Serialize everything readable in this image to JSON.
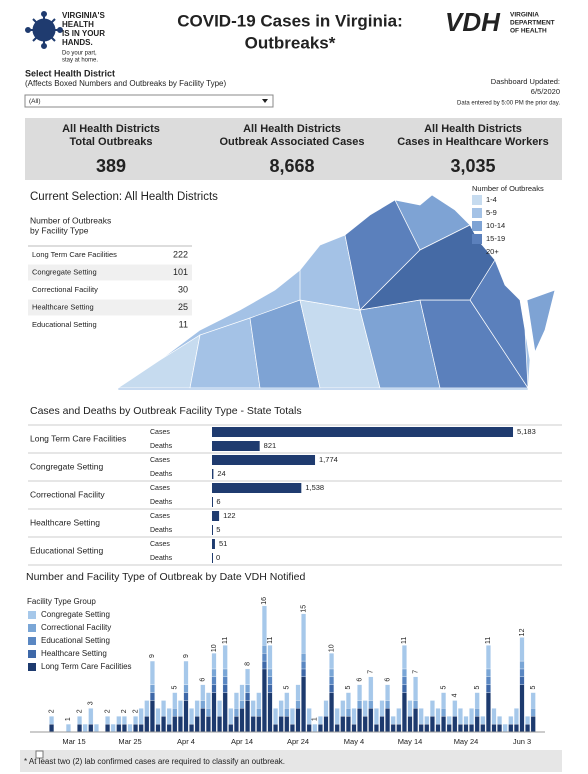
{
  "header": {
    "logo_lines": [
      "VIRGINIA'S",
      "HEALTH",
      "IS IN YOUR",
      "HANDS."
    ],
    "logo_tagline": [
      "Do your part,",
      "stay at home."
    ],
    "title": [
      "COVID-19 Cases in Virginia:",
      "Outbreaks*"
    ],
    "vdh_mark": "VDH",
    "vdh_name": [
      "VIRGINIA",
      "DEPARTMENT",
      "OF HEALTH"
    ]
  },
  "filter": {
    "label": "Select Health District",
    "note": "(Affects Boxed Numbers and Outbreaks by Facility Type)",
    "value": "(All)"
  },
  "updated": {
    "label": "Dashboard Updated:",
    "date": "6/5/2020",
    "note": "Data entered by 5:00 PM the prior day."
  },
  "kpis": [
    {
      "label": [
        "All Health Districts",
        "Total Outbreaks"
      ],
      "value": "389"
    },
    {
      "label": [
        "All Health Districts",
        "Outbreak Associated Cases"
      ],
      "value": "8,668"
    },
    {
      "label": [
        "All Health Districts",
        "Cases in Healthcare Workers"
      ],
      "value": "3,035"
    }
  ],
  "selection": "Current Selection: All Health Districts",
  "facility_table": {
    "title": [
      "Number of Outbreaks",
      "by Facility Type"
    ],
    "rows": [
      [
        "Long Term Care Facilities",
        "222"
      ],
      [
        "Congregate Setting",
        "101"
      ],
      [
        "Correctional Facility",
        "30"
      ],
      [
        "Healthcare Setting",
        "25"
      ],
      [
        "Educational Setting",
        "11"
      ]
    ]
  },
  "map": {
    "legend_title": "Number of Outbreaks",
    "bins": [
      {
        "label": "1-4",
        "color": "#c6dbef"
      },
      {
        "label": "5-9",
        "color": "#a4c2e6"
      },
      {
        "label": "10-14",
        "color": "#7ea3d4"
      },
      {
        "label": "15-19",
        "color": "#5b80bc"
      },
      {
        "label": "20+",
        "color": "#456aa5"
      }
    ]
  },
  "chart_data": [
    {
      "type": "hbar",
      "title": "Cases and Deaths by Outbreak Facility Type - State Totals",
      "categories": [
        "Long Term Care Facilities",
        "Congregate Setting",
        "Correctional Facility",
        "Healthcare Setting",
        "Educational Setting"
      ],
      "series": [
        {
          "name": "Cases",
          "color": "#1f3b6f",
          "values": [
            5183,
            1774,
            1538,
            122,
            51
          ],
          "value_labels": [
            "5,183",
            "1,774",
            "1,538",
            "122",
            "51"
          ]
        },
        {
          "name": "Deaths",
          "color": "#1f3b6f",
          "values": [
            821,
            24,
            6,
            5,
            0
          ],
          "value_labels": [
            "821",
            "24",
            "6",
            "5",
            "0"
          ]
        }
      ],
      "xlim": [
        0,
        5200
      ]
    },
    {
      "type": "stacked-bar",
      "title": "Number and Facility Type of Outbreak by Date VDH Notified",
      "legend_title": "Facility Type Group",
      "categories": [
        null,
        null,
        null,
        null,
        null,
        null,
        null,
        "Mar 15",
        null,
        null,
        null,
        null,
        null,
        null,
        null,
        null,
        null,
        "Mar 25",
        null,
        null,
        null,
        null,
        null,
        null,
        null,
        null,
        null,
        "Apr 4",
        null,
        null,
        null,
        null,
        null,
        null,
        null,
        null,
        null,
        "Apr 14",
        null,
        null,
        null,
        null,
        null,
        null,
        null,
        null,
        null,
        "Apr 24",
        null,
        null,
        null,
        null,
        null,
        null,
        null,
        null,
        null,
        "May 4",
        null,
        null,
        null,
        null,
        null,
        null,
        null,
        null,
        null,
        "May 14",
        null,
        null,
        null,
        null,
        null,
        null,
        null,
        null,
        null,
        "May 24",
        null,
        null,
        null,
        null,
        null,
        null,
        null,
        null,
        null,
        "Jun 3",
        null,
        null
      ],
      "series": [
        {
          "name": "Congregate Setting",
          "color": "#a6c8ea",
          "values": [
            0,
            0,
            0,
            1,
            0,
            0,
            1,
            0,
            1,
            1,
            2,
            1,
            0,
            1,
            1,
            1,
            1,
            1,
            1,
            2,
            2,
            3,
            2,
            2,
            2,
            2,
            2,
            3,
            2,
            2,
            2,
            2,
            2,
            2,
            3,
            2,
            2,
            2,
            2,
            2,
            2,
            5,
            3,
            2,
            2,
            2,
            2,
            2,
            5,
            2,
            1,
            1,
            2,
            2,
            2,
            2,
            2,
            2,
            2,
            2,
            3,
            2,
            2,
            2,
            1,
            2,
            3,
            2,
            3,
            2,
            1,
            2,
            2,
            2,
            1,
            2,
            2,
            1,
            2,
            2,
            1,
            3,
            2,
            1,
            1,
            1,
            2,
            3,
            1,
            2
          ]
        },
        {
          "name": "Correctional Facility",
          "color": "#7aa6d6",
          "values": [
            0,
            0,
            0,
            0,
            0,
            0,
            0,
            0,
            0,
            0,
            0,
            0,
            0,
            0,
            0,
            0,
            0,
            0,
            0,
            0,
            0,
            1,
            0,
            0,
            0,
            1,
            0,
            1,
            0,
            0,
            1,
            1,
            1,
            0,
            1,
            0,
            1,
            1,
            1,
            0,
            1,
            1,
            1,
            0,
            0,
            1,
            0,
            1,
            1,
            0,
            0,
            0,
            0,
            1,
            0,
            0,
            1,
            0,
            1,
            0,
            1,
            0,
            0,
            1,
            0,
            0,
            1,
            0,
            1,
            0,
            0,
            0,
            0,
            1,
            0,
            0,
            0,
            0,
            0,
            1,
            0,
            1,
            0,
            0,
            0,
            0,
            0,
            1,
            0,
            1
          ]
        },
        {
          "name": "Educational Setting",
          "color": "#5a87c2",
          "values": [
            0,
            0,
            0,
            0,
            0,
            0,
            0,
            0,
            0,
            0,
            0,
            0,
            0,
            0,
            0,
            0,
            0,
            0,
            0,
            0,
            0,
            0,
            0,
            0,
            0,
            0,
            0,
            0,
            0,
            0,
            0,
            0,
            1,
            0,
            1,
            0,
            0,
            0,
            0,
            0,
            0,
            1,
            1,
            0,
            0,
            0,
            0,
            0,
            1,
            0,
            0,
            0,
            0,
            1,
            0,
            0,
            0,
            0,
            0,
            0,
            0,
            0,
            0,
            0,
            0,
            0,
            1,
            0,
            0,
            0,
            0,
            0,
            0,
            0,
            0,
            0,
            0,
            0,
            0,
            0,
            0,
            1,
            0,
            0,
            0,
            0,
            0,
            1,
            0,
            0
          ]
        },
        {
          "name": "Healthcare Setting",
          "color": "#3e68a8",
          "values": [
            0,
            0,
            0,
            0,
            0,
            0,
            0,
            0,
            0,
            0,
            0,
            0,
            0,
            0,
            0,
            0,
            0,
            0,
            0,
            0,
            0,
            1,
            0,
            0,
            0,
            0,
            0,
            1,
            0,
            0,
            0,
            0,
            1,
            0,
            1,
            0,
            0,
            0,
            1,
            0,
            0,
            1,
            1,
            0,
            0,
            0,
            0,
            0,
            1,
            0,
            0,
            0,
            0,
            1,
            0,
            0,
            0,
            0,
            0,
            0,
            0,
            0,
            0,
            0,
            0,
            0,
            1,
            0,
            0,
            0,
            0,
            0,
            0,
            0,
            0,
            0,
            0,
            0,
            0,
            0,
            0,
            1,
            0,
            0,
            0,
            0,
            0,
            1,
            0,
            0
          ]
        },
        {
          "name": "Long Term Care Facilities",
          "color": "#1d3a6e",
          "values": [
            0,
            0,
            0,
            1,
            0,
            0,
            0,
            0,
            1,
            0,
            1,
            0,
            0,
            1,
            0,
            1,
            1,
            0,
            1,
            1,
            2,
            4,
            1,
            2,
            1,
            2,
            2,
            4,
            1,
            2,
            3,
            2,
            5,
            2,
            5,
            1,
            2,
            3,
            4,
            2,
            2,
            8,
            5,
            1,
            2,
            2,
            1,
            3,
            7,
            1,
            0,
            1,
            2,
            5,
            1,
            2,
            2,
            1,
            3,
            2,
            3,
            1,
            2,
            3,
            1,
            1,
            5,
            2,
            3,
            1,
            1,
            2,
            1,
            2,
            1,
            2,
            1,
            1,
            1,
            2,
            1,
            5,
            1,
            1,
            0,
            1,
            1,
            6,
            1,
            2
          ]
        }
      ],
      "totals": [
        null,
        null,
        null,
        2,
        null,
        null,
        1,
        null,
        2,
        null,
        3,
        null,
        null,
        2,
        null,
        null,
        2,
        null,
        2,
        null,
        null,
        9,
        null,
        null,
        null,
        5,
        null,
        9,
        null,
        null,
        6,
        null,
        10,
        null,
        11,
        null,
        null,
        null,
        8,
        null,
        null,
        16,
        11,
        null,
        null,
        5,
        null,
        null,
        15,
        null,
        1,
        null,
        null,
        10,
        null,
        null,
        5,
        null,
        6,
        null,
        7,
        null,
        null,
        6,
        null,
        null,
        11,
        null,
        7,
        null,
        null,
        null,
        null,
        5,
        null,
        4,
        null,
        null,
        null,
        5,
        null,
        11,
        null,
        null,
        null,
        null,
        null,
        12,
        null,
        5
      ],
      "ylim": [
        0,
        17
      ]
    }
  ],
  "footnote": "* At least two (2) lab confirmed cases are required to classify an outbreak."
}
